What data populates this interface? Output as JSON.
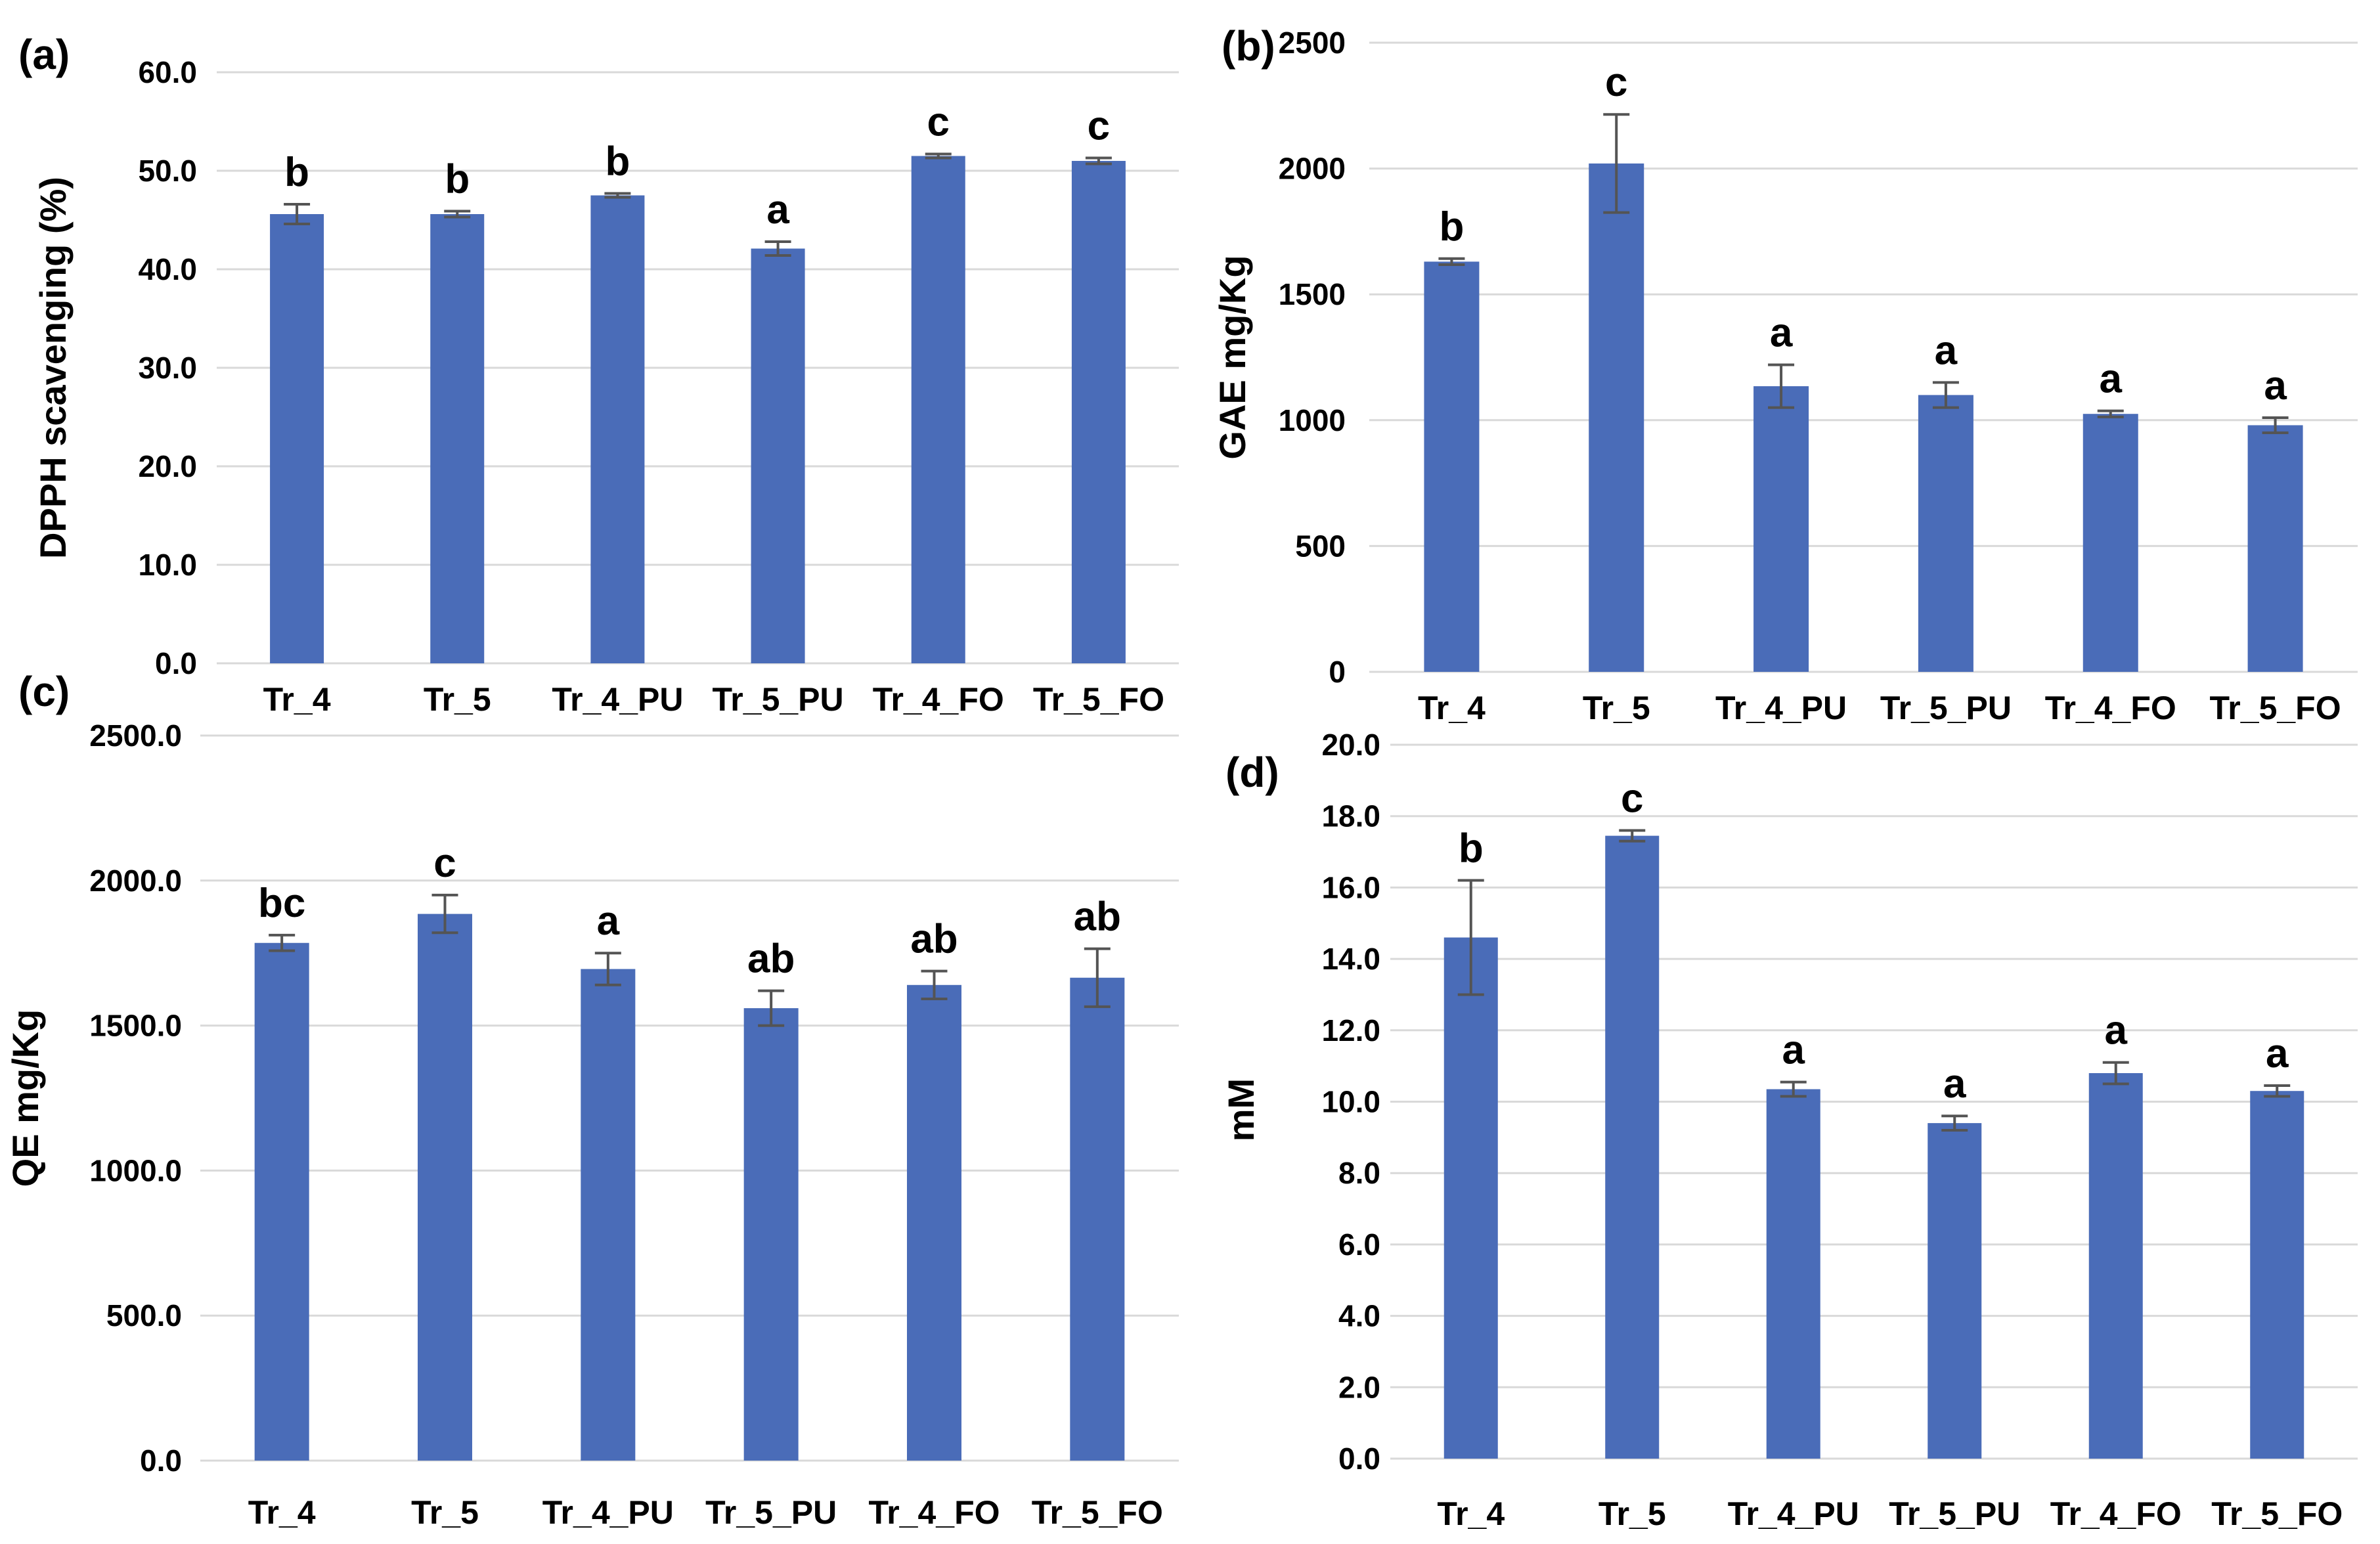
{
  "styles": {
    "bar_color": "#4a6cb8",
    "error_bar_color": "#545454",
    "grid_color": "#d9d9d9",
    "text_color": "#000000",
    "background_color": "#ffffff"
  },
  "categories": [
    "Tr_4",
    "Tr_5",
    "Tr_4_PU",
    "Tr_5_PU",
    "Tr_4_FO",
    "Tr_5_FO"
  ],
  "chart_data": [
    {
      "type": "bar",
      "panel_label": "(a)",
      "title": "",
      "xlabel": "",
      "ylabel": "DPPH scavenging (%)",
      "ylim": [
        0,
        60
      ],
      "ystep": 10,
      "tick_decimals": 1,
      "grid": true,
      "legend_position": "none",
      "categories": [
        "Tr_4",
        "Tr_5",
        "Tr_4_PU",
        "Tr_5_PU",
        "Tr_4_FO",
        "Tr_5_FO"
      ],
      "values": [
        45.6,
        45.6,
        47.5,
        42.1,
        51.5,
        51.0
      ],
      "errors": [
        1.0,
        0.3,
        0.2,
        0.7,
        0.2,
        0.3
      ],
      "sig_letters": [
        "b",
        "b",
        "b",
        "a",
        "c",
        "c"
      ]
    },
    {
      "type": "bar",
      "panel_label": "(b)",
      "title": "",
      "xlabel": "",
      "ylabel": "GAE mg/Kg",
      "ylim": [
        0,
        2500
      ],
      "ystep": 500,
      "tick_decimals": 0,
      "grid": true,
      "legend_position": "none",
      "categories": [
        "Tr_4",
        "Tr_5",
        "Tr_4_PU",
        "Tr_5_PU",
        "Tr_4_FO",
        "Tr_5_FO"
      ],
      "values": [
        1630,
        2020,
        1135,
        1100,
        1025,
        980
      ],
      "errors": [
        12,
        195,
        85,
        50,
        12,
        30
      ],
      "sig_letters": [
        "b",
        "c",
        "a",
        "a",
        "a",
        "a"
      ]
    },
    {
      "type": "bar",
      "panel_label": "(c)",
      "title": "",
      "xlabel": "",
      "ylabel": "QE mg/Kg",
      "ylim": [
        0,
        2500
      ],
      "ystep": 500,
      "tick_decimals": 1,
      "grid": true,
      "legend_position": "none",
      "categories": [
        "Tr_4",
        "Tr_5",
        "Tr_4_PU",
        "Tr_5_PU",
        "Tr_4_FO",
        "Tr_5_FO"
      ],
      "values": [
        1785,
        1885,
        1695,
        1560,
        1640,
        1665
      ],
      "errors": [
        27,
        65,
        55,
        60,
        48,
        100
      ],
      "sig_letters": [
        "bc",
        "c",
        "a",
        "ab",
        "ab",
        "ab"
      ]
    },
    {
      "type": "bar",
      "panel_label": "(d)",
      "title": "",
      "xlabel": "",
      "ylabel": "mM",
      "ylim": [
        0,
        20
      ],
      "ystep": 2,
      "tick_decimals": 1,
      "grid": true,
      "legend_position": "none",
      "categories": [
        "Tr_4",
        "Tr_5",
        "Tr_4_PU",
        "Tr_5_PU",
        "Tr_4_FO",
        "Tr_5_FO"
      ],
      "values": [
        14.6,
        17.45,
        10.35,
        9.4,
        10.8,
        10.3
      ],
      "errors": [
        1.6,
        0.15,
        0.2,
        0.2,
        0.3,
        0.15
      ],
      "sig_letters": [
        "b",
        "c",
        "a",
        "a",
        "a",
        "a"
      ]
    }
  ]
}
